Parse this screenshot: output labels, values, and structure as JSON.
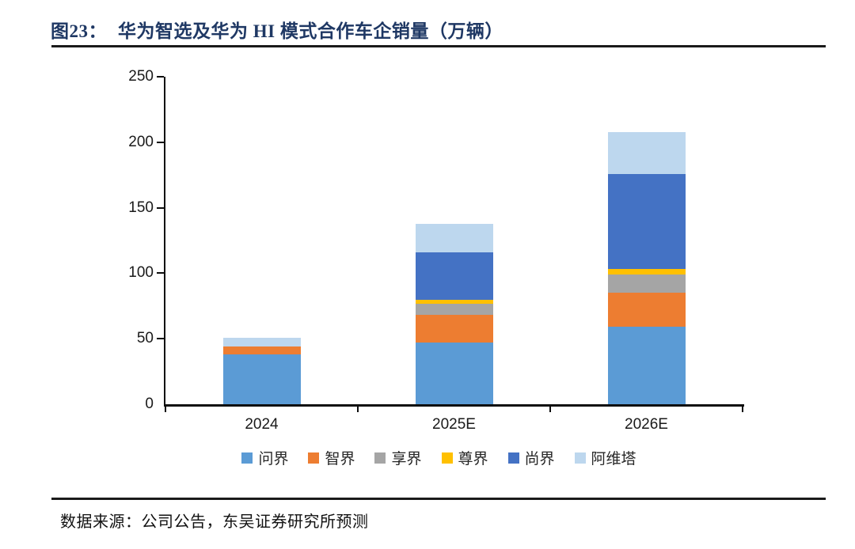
{
  "figure": {
    "title_prefix": "图23：",
    "title_text": "华为智选及华为 HI 模式合作车企销量（万辆）",
    "source": "数据来源：公司公告，东吴证券研究所预测"
  },
  "chart_data": {
    "type": "bar",
    "stacked": true,
    "title": "华为智选及华为 HI 模式合作车企销量（万辆）",
    "unit": "万辆",
    "categories": [
      "2024",
      "2025E",
      "2026E"
    ],
    "series": [
      {
        "name": "问界",
        "color": "#5B9BD5",
        "values": [
          38,
          47,
          59
        ]
      },
      {
        "name": "智界",
        "color": "#ED7D31",
        "values": [
          6,
          21,
          26
        ]
      },
      {
        "name": "享界",
        "color": "#A5A5A5",
        "values": [
          0,
          9,
          14
        ]
      },
      {
        "name": "尊界",
        "color": "#FFC000",
        "values": [
          0,
          3,
          4
        ]
      },
      {
        "name": "尚界",
        "color": "#4472C4",
        "values": [
          0,
          36,
          73
        ]
      },
      {
        "name": "阿维塔",
        "color": "#BDD7EE",
        "values": [
          7,
          22,
          32
        ]
      }
    ],
    "totals": [
      51,
      138,
      208
    ],
    "ylim": [
      0,
      250
    ],
    "yticks": [
      0,
      50,
      100,
      150,
      200,
      250
    ],
    "xlabel": "",
    "ylabel": "",
    "grid": false,
    "legend_position": "bottom"
  },
  "style_colors": {
    "title": "#1F3864",
    "rule": "#1a1a1a",
    "axis": "#0d0d0d"
  }
}
